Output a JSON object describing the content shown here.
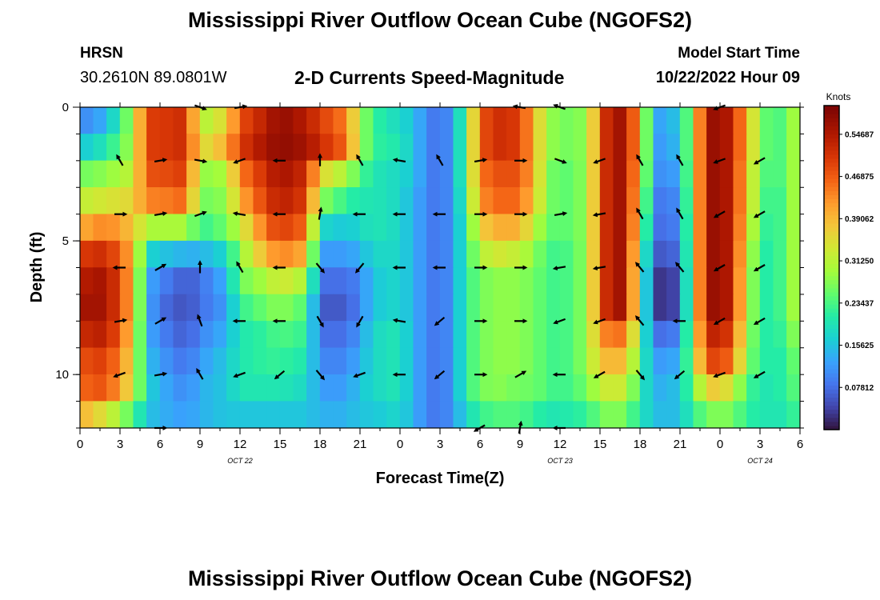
{
  "page": {
    "title": "Mississippi River Outflow Ocean Cube (NGOFS2)",
    "title_repeat": "Mississippi River Outflow Ocean Cube (NGOFS2)",
    "station": "HRSN",
    "coordinates": "30.2610N  89.0801W",
    "model_start_label": "Model Start Time",
    "model_start_value": "10/22/2022 Hour 09"
  },
  "chart_data": {
    "type": "heatmap",
    "title": "2-D Currents Speed-Magnitude",
    "xlabel": "Forecast Time(Z)",
    "ylabel": "Depth (ft)",
    "units_label": "Knots",
    "x_range_hours": [
      0,
      54
    ],
    "y_range_ft": [
      0,
      12
    ],
    "x_tick_labels": [
      "0",
      "3",
      "6",
      "9",
      "12",
      "15",
      "18",
      "21",
      "0",
      "3",
      "6",
      "9",
      "12",
      "15",
      "18",
      "21",
      "0",
      "3",
      "6"
    ],
    "y_tick_values": [
      0,
      5,
      10
    ],
    "y_tick_labels": [
      "0",
      "5",
      "10"
    ],
    "date_labels": [
      {
        "text": "OCT 22",
        "hour": 12
      },
      {
        "text": "OCT 23",
        "hour": 36
      },
      {
        "text": "OCT 24",
        "hour": 51
      }
    ],
    "colorbar_ticks": [
      {
        "value": 0.07812,
        "label": "0.07812"
      },
      {
        "value": 0.15625,
        "label": "0.15625"
      },
      {
        "value": 0.23437,
        "label": "0.23437"
      },
      {
        "value": 0.3125,
        "label": "0.31250"
      },
      {
        "value": 0.39062,
        "label": "0.39062"
      },
      {
        "value": 0.46875,
        "label": "0.46875"
      },
      {
        "value": 0.54687,
        "label": "0.54687"
      }
    ],
    "colorbar_range": [
      0.0,
      0.6
    ],
    "depth_levels_ft": [
      0.5,
      1.5,
      2.5,
      3.5,
      4.5,
      5.5,
      6.5,
      7.5,
      8.5,
      9.5,
      10.5,
      11.5
    ],
    "speed_keyframes": {
      "hours": [
        0,
        2,
        4,
        5,
        6,
        8,
        9,
        11,
        12,
        14,
        15,
        17,
        18,
        20,
        21,
        22,
        24,
        25,
        26,
        27,
        28,
        29,
        30,
        31,
        33,
        34,
        35,
        36,
        38,
        39,
        40,
        41,
        42,
        43,
        44,
        45,
        46,
        47,
        48,
        49,
        50,
        51,
        52,
        53,
        54
      ],
      "layers": [
        [
          0.1,
          0.14,
          0.3,
          0.5,
          0.5,
          0.52,
          0.3,
          0.36,
          0.48,
          0.54,
          0.58,
          0.54,
          0.5,
          0.44,
          0.3,
          0.22,
          0.18,
          0.16,
          0.1,
          0.08,
          0.12,
          0.26,
          0.46,
          0.52,
          0.5,
          0.4,
          0.3,
          0.26,
          0.28,
          0.46,
          0.58,
          0.54,
          0.4,
          0.12,
          0.14,
          0.16,
          0.32,
          0.56,
          0.58,
          0.52,
          0.4,
          0.28,
          0.22,
          0.26,
          0.32
        ],
        [
          0.16,
          0.2,
          0.3,
          0.5,
          0.5,
          0.52,
          0.34,
          0.4,
          0.5,
          0.56,
          0.58,
          0.56,
          0.52,
          0.46,
          0.3,
          0.22,
          0.2,
          0.16,
          0.1,
          0.08,
          0.12,
          0.26,
          0.46,
          0.52,
          0.5,
          0.4,
          0.3,
          0.26,
          0.28,
          0.46,
          0.58,
          0.54,
          0.4,
          0.12,
          0.12,
          0.16,
          0.32,
          0.56,
          0.58,
          0.52,
          0.4,
          0.28,
          0.22,
          0.26,
          0.32
        ],
        [
          0.26,
          0.28,
          0.32,
          0.48,
          0.48,
          0.5,
          0.28,
          0.3,
          0.44,
          0.52,
          0.56,
          0.52,
          0.36,
          0.3,
          0.24,
          0.2,
          0.18,
          0.16,
          0.1,
          0.08,
          0.12,
          0.26,
          0.44,
          0.48,
          0.48,
          0.4,
          0.28,
          0.24,
          0.28,
          0.46,
          0.58,
          0.54,
          0.38,
          0.12,
          0.1,
          0.14,
          0.32,
          0.56,
          0.58,
          0.52,
          0.38,
          0.26,
          0.22,
          0.26,
          0.32
        ],
        [
          0.32,
          0.34,
          0.36,
          0.44,
          0.44,
          0.46,
          0.26,
          0.28,
          0.4,
          0.5,
          0.54,
          0.5,
          0.28,
          0.22,
          0.2,
          0.2,
          0.18,
          0.14,
          0.1,
          0.08,
          0.12,
          0.24,
          0.42,
          0.46,
          0.46,
          0.38,
          0.28,
          0.24,
          0.28,
          0.46,
          0.58,
          0.54,
          0.36,
          0.1,
          0.08,
          0.12,
          0.32,
          0.56,
          0.58,
          0.52,
          0.38,
          0.26,
          0.2,
          0.26,
          0.32
        ],
        [
          0.4,
          0.44,
          0.38,
          0.3,
          0.3,
          0.3,
          0.22,
          0.26,
          0.32,
          0.46,
          0.5,
          0.46,
          0.18,
          0.16,
          0.18,
          0.2,
          0.18,
          0.14,
          0.1,
          0.08,
          0.12,
          0.22,
          0.36,
          0.4,
          0.4,
          0.32,
          0.26,
          0.24,
          0.28,
          0.46,
          0.58,
          0.54,
          0.34,
          0.08,
          0.08,
          0.1,
          0.32,
          0.56,
          0.58,
          0.52,
          0.36,
          0.24,
          0.2,
          0.26,
          0.32
        ],
        [
          0.5,
          0.52,
          0.4,
          0.18,
          0.16,
          0.14,
          0.14,
          0.18,
          0.28,
          0.4,
          0.44,
          0.4,
          0.12,
          0.12,
          0.14,
          0.18,
          0.18,
          0.14,
          0.1,
          0.08,
          0.12,
          0.22,
          0.3,
          0.34,
          0.32,
          0.28,
          0.24,
          0.22,
          0.28,
          0.46,
          0.58,
          0.54,
          0.3,
          0.06,
          0.06,
          0.08,
          0.32,
          0.56,
          0.58,
          0.52,
          0.34,
          0.22,
          0.2,
          0.26,
          0.32
        ],
        [
          0.54,
          0.56,
          0.4,
          0.14,
          0.1,
          0.06,
          0.08,
          0.14,
          0.26,
          0.3,
          0.34,
          0.3,
          0.08,
          0.08,
          0.1,
          0.16,
          0.18,
          0.14,
          0.1,
          0.08,
          0.12,
          0.22,
          0.26,
          0.28,
          0.28,
          0.26,
          0.24,
          0.22,
          0.28,
          0.46,
          0.58,
          0.54,
          0.28,
          0.04,
          0.02,
          0.06,
          0.32,
          0.56,
          0.58,
          0.52,
          0.32,
          0.22,
          0.2,
          0.26,
          0.32
        ],
        [
          0.56,
          0.56,
          0.4,
          0.14,
          0.08,
          0.05,
          0.08,
          0.12,
          0.22,
          0.26,
          0.28,
          0.24,
          0.06,
          0.06,
          0.1,
          0.16,
          0.18,
          0.14,
          0.1,
          0.08,
          0.12,
          0.22,
          0.26,
          0.28,
          0.28,
          0.26,
          0.24,
          0.22,
          0.28,
          0.46,
          0.58,
          0.54,
          0.28,
          0.04,
          0.02,
          0.06,
          0.32,
          0.56,
          0.58,
          0.52,
          0.32,
          0.22,
          0.2,
          0.26,
          0.32
        ],
        [
          0.52,
          0.54,
          0.38,
          0.14,
          0.1,
          0.06,
          0.1,
          0.14,
          0.2,
          0.22,
          0.24,
          0.22,
          0.08,
          0.08,
          0.12,
          0.18,
          0.2,
          0.14,
          0.1,
          0.08,
          0.12,
          0.22,
          0.26,
          0.28,
          0.28,
          0.26,
          0.24,
          0.22,
          0.28,
          0.42,
          0.46,
          0.44,
          0.26,
          0.08,
          0.08,
          0.1,
          0.32,
          0.52,
          0.54,
          0.48,
          0.3,
          0.22,
          0.2,
          0.24,
          0.3
        ],
        [
          0.48,
          0.5,
          0.36,
          0.16,
          0.12,
          0.08,
          0.12,
          0.16,
          0.2,
          0.22,
          0.22,
          0.2,
          0.1,
          0.1,
          0.14,
          0.18,
          0.2,
          0.14,
          0.1,
          0.08,
          0.12,
          0.22,
          0.26,
          0.28,
          0.28,
          0.26,
          0.24,
          0.22,
          0.28,
          0.38,
          0.4,
          0.38,
          0.24,
          0.12,
          0.12,
          0.14,
          0.3,
          0.48,
          0.5,
          0.44,
          0.28,
          0.22,
          0.2,
          0.22,
          0.28
        ],
        [
          0.46,
          0.48,
          0.34,
          0.18,
          0.14,
          0.1,
          0.14,
          0.16,
          0.2,
          0.2,
          0.2,
          0.18,
          0.12,
          0.12,
          0.16,
          0.18,
          0.2,
          0.14,
          0.1,
          0.08,
          0.12,
          0.22,
          0.26,
          0.28,
          0.26,
          0.26,
          0.24,
          0.22,
          0.26,
          0.32,
          0.34,
          0.32,
          0.22,
          0.14,
          0.14,
          0.16,
          0.26,
          0.36,
          0.38,
          0.32,
          0.24,
          0.2,
          0.2,
          0.22,
          0.26
        ],
        [
          0.4,
          0.34,
          0.24,
          0.16,
          0.14,
          0.12,
          0.14,
          0.16,
          0.16,
          0.16,
          0.16,
          0.16,
          0.14,
          0.14,
          0.16,
          0.16,
          0.18,
          0.14,
          0.1,
          0.08,
          0.12,
          0.18,
          0.22,
          0.24,
          0.24,
          0.22,
          0.2,
          0.2,
          0.22,
          0.26,
          0.28,
          0.26,
          0.2,
          0.16,
          0.14,
          0.16,
          0.22,
          0.26,
          0.28,
          0.26,
          0.22,
          0.2,
          0.2,
          0.2,
          0.24
        ]
      ]
    },
    "vectors": {
      "hours": [
        3,
        6,
        9,
        12,
        15,
        18,
        21,
        24,
        27,
        30,
        33,
        36,
        39,
        42,
        45,
        48,
        51
      ],
      "depths_ft": [
        0,
        2,
        4,
        6,
        8,
        10,
        12
      ],
      "directions_deg": [
        [
          null,
          null,
          110,
          80,
          null,
          null,
          null,
          null,
          null,
          null,
          280,
          290,
          null,
          null,
          null,
          250,
          null
        ],
        [
          330,
          80,
          100,
          250,
          270,
          0,
          330,
          280,
          330,
          80,
          90,
          110,
          250,
          330,
          330,
          250,
          240
        ],
        [
          90,
          80,
          70,
          280,
          270,
          10,
          270,
          270,
          270,
          90,
          90,
          80,
          260,
          330,
          330,
          240,
          240
        ],
        [
          270,
          60,
          0,
          330,
          270,
          140,
          220,
          270,
          270,
          90,
          90,
          260,
          260,
          320,
          320,
          240,
          240
        ],
        [
          80,
          60,
          340,
          270,
          270,
          150,
          210,
          280,
          230,
          90,
          90,
          250,
          250,
          320,
          270,
          240,
          240
        ],
        [
          250,
          80,
          330,
          250,
          230,
          140,
          250,
          270,
          230,
          90,
          60,
          270,
          240,
          140,
          230,
          250,
          240
        ],
        [
          null,
          90,
          null,
          null,
          null,
          null,
          null,
          null,
          null,
          240,
          10,
          270,
          null,
          null,
          null,
          null,
          null
        ]
      ]
    }
  }
}
